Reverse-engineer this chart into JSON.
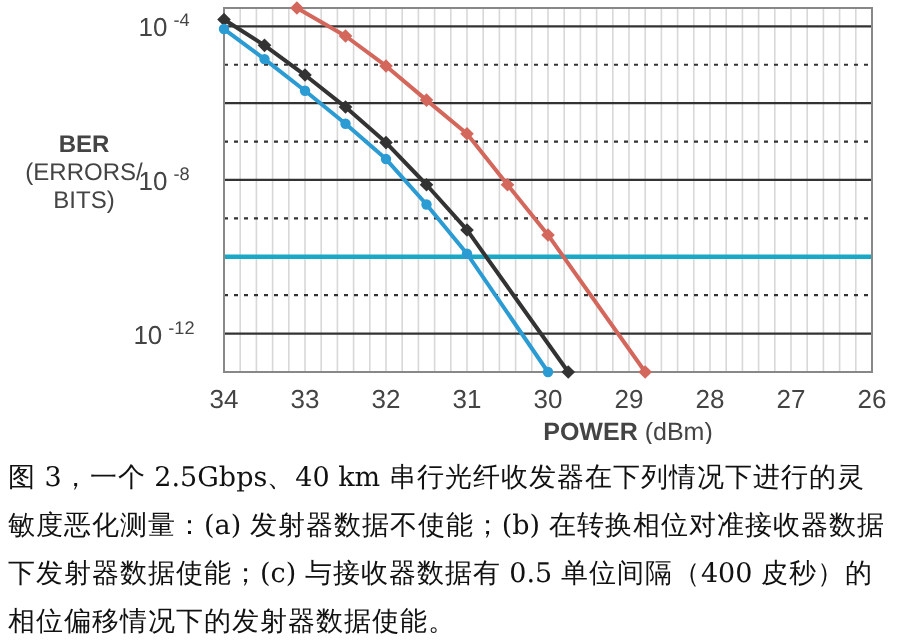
{
  "chart_data": {
    "type": "line",
    "xlabel": "**POWER** (dBm)",
    "ylabel": "**BER** (ERRORS/ BITS)",
    "annotations": [
      "图 3，一个 2.5Gbps、40 km 串行光纤收发器在下列情况下进行的灵敏度恶化测量：(a) 发射器数据不使能；(b) 在转换相位对准接收器数据下发射器数据使能；(c) 与接收器数据有 0.5 单位间隔（400 皮秒）的相位偏移情况下的发射器数据使能。"
    ],
    "log": "y",
    "grid": true,
    "line_style": "solid",
    "xlim": [
      34,
      26
    ],
    "xticks": [
      34,
      {
        "value": 33.8,
        "label": null
      },
      {
        "value": 33.6,
        "label": null
      },
      {
        "value": 33.4,
        "label": null
      },
      {
        "value": 33.2,
        "label": null
      },
      33,
      {
        "value": 32.8,
        "label": null
      },
      {
        "value": 32.6,
        "label": null
      },
      {
        "value": 32.4,
        "label": null
      },
      {
        "value": 32.2,
        "label": null
      },
      32,
      {
        "value": 31.8,
        "label": null
      },
      {
        "value": 31.6,
        "label": null
      },
      {
        "value": 31.4,
        "label": null
      },
      {
        "value": 31.2,
        "label": null
      },
      31,
      {
        "value": 30.8,
        "label": null
      },
      {
        "value": 30.6,
        "label": null
      },
      {
        "value": 30.4,
        "label": null
      },
      {
        "value": 30.2,
        "label": null
      },
      30,
      {
        "value": 29.8,
        "label": null
      },
      {
        "value": 29.6,
        "label": null
      },
      {
        "value": 29.4,
        "label": null
      },
      {
        "value": 29.2,
        "label": null
      },
      29,
      {
        "value": 28.8,
        "label": null
      },
      {
        "value": 28.6,
        "label": null
      },
      {
        "value": 28.4,
        "label": null
      },
      {
        "value": 28.2,
        "label": null
      },
      28,
      {
        "value": 27.8,
        "label": null
      },
      {
        "value": 27.6,
        "label": null
      },
      {
        "value": 27.4,
        "label": null
      },
      {
        "value": 27.2,
        "label": null
      },
      27,
      {
        "value": 26.8,
        "label": null
      },
      {
        "value": 26.6,
        "label": null
      },
      {
        "value": 26.4,
        "label": null
      },
      {
        "value": 26.2,
        "label": null
      },
      26
    ],
    "ylim": [
      1e-13,
      0.0003
    ],
    "yticks": [
      {
        "value": 0.0001,
        "label": "10$^{-4}$"
      },
      {
        "value": 1e-05,
        "label": null
      },
      {
        "value": 1e-06,
        "label": null
      },
      {
        "value": 1e-07,
        "label": null
      },
      {
        "value": 1e-08,
        "label": "10$^{-8}$"
      },
      {
        "value": 1e-09,
        "label": null
      },
      {
        "value": 1e-11,
        "label": null
      },
      {
        "value": 1e-12,
        "label": "10$^{-12}$"
      }
    ],
    "ref_lines": [
      {
        "axis": "y",
        "value": 1e-10,
        "color": "#19a9c6"
      }
    ],
    "series": [
      {
        "color": "#333333",
        "marker": "diamond",
        "x": [
          34,
          33.5,
          33,
          32.5,
          32,
          31.5,
          31,
          29.75
        ],
        "values": [
          0.00015,
          3.2e-05,
          5.4e-06,
          7.9e-07,
          9.4e-08,
          7.5e-09,
          5e-10,
          1e-13
        ]
      },
      {
        "color": "#2b9bd3",
        "marker": "circle",
        "x": [
          34,
          33.5,
          33,
          32.5,
          32,
          31.5,
          31,
          30
        ],
        "values": [
          8.5e-05,
          1.4e-05,
          2.1e-06,
          2.9e-07,
          3.5e-08,
          2.3e-09,
          1.2e-10,
          1e-13
        ]
      },
      {
        "color": "#d4675c",
        "marker": "diamond",
        "x": [
          33.1,
          32.5,
          32,
          31.5,
          31,
          30.5,
          30,
          28.8
        ],
        "values": [
          0.0003,
          5.6e-05,
          9.3e-06,
          1.2e-06,
          1.6e-07,
          7.5e-09,
          3.7e-10,
          1e-13
        ]
      }
    ]
  }
}
